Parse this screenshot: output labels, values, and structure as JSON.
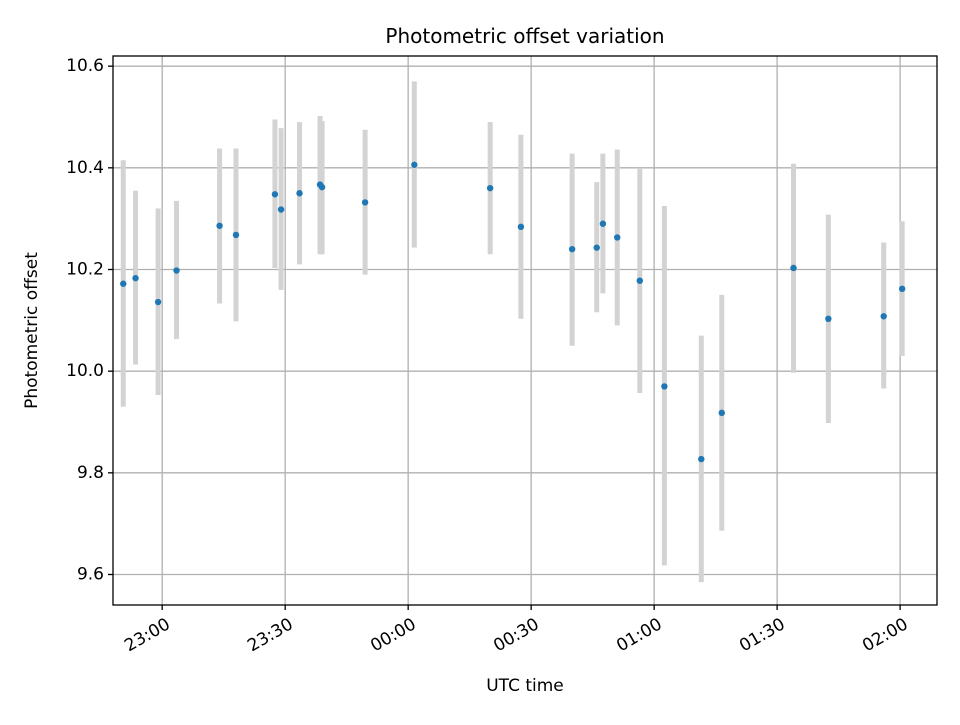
{
  "chart_data": {
    "type": "scatter",
    "title": "Photometric offset variation",
    "xlabel": "UTC time",
    "ylabel": "Photometric offset",
    "grid": true,
    "x_axis_type": "time",
    "xlim": [
      "22:48",
      "02:09"
    ],
    "ylim": [
      9.54,
      10.62
    ],
    "x_ticks": [
      "23:00",
      "23:30",
      "00:00",
      "00:30",
      "01:00",
      "01:30",
      "02:00"
    ],
    "y_ticks": [
      "9.6",
      "9.8",
      "10.0",
      "10.2",
      "10.4",
      "10.6"
    ],
    "colors": {
      "point": "#1f77b4",
      "errorbar": "#d3d3d3",
      "grid": "#b0b0b0"
    },
    "series": [
      {
        "points": [
          {
            "x": "22:50:30",
            "y": 10.172,
            "ylow": 9.93,
            "yhigh": 10.415
          },
          {
            "x": "22:53:30",
            "y": 10.183,
            "ylow": 10.013,
            "yhigh": 10.355
          },
          {
            "x": "22:59:00",
            "y": 10.136,
            "ylow": 9.953,
            "yhigh": 10.32
          },
          {
            "x": "23:03:30",
            "y": 10.198,
            "ylow": 10.063,
            "yhigh": 10.335
          },
          {
            "x": "23:14:00",
            "y": 10.286,
            "ylow": 10.133,
            "yhigh": 10.438
          },
          {
            "x": "23:18:00",
            "y": 10.268,
            "ylow": 10.098,
            "yhigh": 10.438
          },
          {
            "x": "23:27:30",
            "y": 10.348,
            "ylow": 10.203,
            "yhigh": 10.495
          },
          {
            "x": "23:29:00",
            "y": 10.318,
            "ylow": 10.16,
            "yhigh": 10.478
          },
          {
            "x": "23:33:30",
            "y": 10.35,
            "ylow": 10.21,
            "yhigh": 10.49
          },
          {
            "x": "23:38:30",
            "y": 10.367,
            "ylow": 10.23,
            "yhigh": 10.502
          },
          {
            "x": "23:39:00",
            "y": 10.362,
            "ylow": 10.23,
            "yhigh": 10.492
          },
          {
            "x": "23:49:30",
            "y": 10.332,
            "ylow": 10.19,
            "yhigh": 10.475
          },
          {
            "x": "00:01:30",
            "y": 10.406,
            "ylow": 10.243,
            "yhigh": 10.57
          },
          {
            "x": "00:20:00",
            "y": 10.36,
            "ylow": 10.23,
            "yhigh": 10.49
          },
          {
            "x": "00:27:30",
            "y": 10.284,
            "ylow": 10.103,
            "yhigh": 10.465
          },
          {
            "x": "00:40:00",
            "y": 10.24,
            "ylow": 10.05,
            "yhigh": 10.428
          },
          {
            "x": "00:46:00",
            "y": 10.243,
            "ylow": 10.116,
            "yhigh": 10.372
          },
          {
            "x": "00:47:30",
            "y": 10.29,
            "ylow": 10.153,
            "yhigh": 10.428
          },
          {
            "x": "00:51:00",
            "y": 10.263,
            "ylow": 10.09,
            "yhigh": 10.436
          },
          {
            "x": "00:56:30",
            "y": 10.178,
            "ylow": 9.957,
            "yhigh": 10.4
          },
          {
            "x": "01:02:30",
            "y": 9.97,
            "ylow": 9.618,
            "yhigh": 10.325
          },
          {
            "x": "01:11:30",
            "y": 9.827,
            "ylow": 9.585,
            "yhigh": 10.07
          },
          {
            "x": "01:16:30",
            "y": 9.918,
            "ylow": 9.686,
            "yhigh": 10.15
          },
          {
            "x": "01:34:00",
            "y": 10.203,
            "ylow": 9.997,
            "yhigh": 10.408
          },
          {
            "x": "01:42:30",
            "y": 10.103,
            "ylow": 9.898,
            "yhigh": 10.308
          },
          {
            "x": "01:56:00",
            "y": 10.108,
            "ylow": 9.966,
            "yhigh": 10.253
          },
          {
            "x": "02:00:30",
            "y": 10.162,
            "ylow": 10.03,
            "yhigh": 10.295
          }
        ]
      }
    ]
  }
}
